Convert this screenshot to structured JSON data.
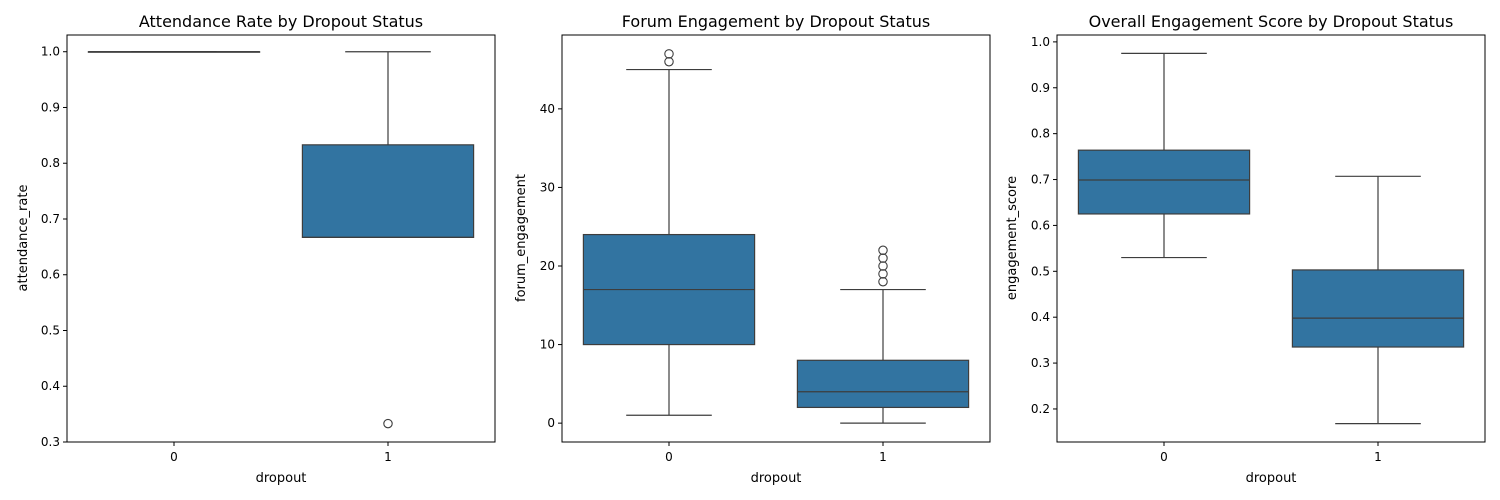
{
  "figure": {
    "background": "#ffffff"
  },
  "style": {
    "box_fill": "#3274a1",
    "line_color": "#3d3d3d",
    "axis_color": "#000000"
  },
  "chart_data": [
    {
      "type": "box",
      "title": "Attendance Rate by Dropout Status",
      "xlabel": "dropout",
      "ylabel": "attendance_rate",
      "categories": [
        "0",
        "1"
      ],
      "ylim": [
        0.3,
        1.03
      ],
      "yticks": [
        0.3,
        0.4,
        0.5,
        0.6,
        0.7,
        0.8,
        0.9,
        1.0
      ],
      "ytick_labels": [
        "0.3",
        "0.4",
        "0.5",
        "0.6",
        "0.7",
        "0.8",
        "0.9",
        "1.0"
      ],
      "boxes": [
        {
          "category": "0",
          "whislo": 1.0,
          "q1": 1.0,
          "med": 1.0,
          "q3": 1.0,
          "whishi": 1.0,
          "fliers": []
        },
        {
          "category": "1",
          "whislo": 0.667,
          "q1": 0.667,
          "med": 0.667,
          "q3": 0.833,
          "whishi": 1.0,
          "fliers": [
            0.333
          ]
        }
      ],
      "grid": false
    },
    {
      "type": "box",
      "title": "Forum Engagement by Dropout Status",
      "xlabel": "dropout",
      "ylabel": "forum_engagement",
      "categories": [
        "0",
        "1"
      ],
      "ylim": [
        -2.4,
        49.4
      ],
      "yticks": [
        0,
        10,
        20,
        30,
        40
      ],
      "ytick_labels": [
        "0",
        "10",
        "20",
        "30",
        "40"
      ],
      "boxes": [
        {
          "category": "0",
          "whislo": 1,
          "q1": 10,
          "med": 17,
          "q3": 24,
          "whishi": 45,
          "fliers": [
            46,
            47
          ]
        },
        {
          "category": "1",
          "whislo": 0,
          "q1": 2,
          "med": 4,
          "q3": 8,
          "whishi": 17,
          "fliers": [
            18,
            19,
            20,
            21,
            22
          ]
        }
      ],
      "grid": false
    },
    {
      "type": "box",
      "title": "Overall Engagement Score by Dropout Status",
      "xlabel": "dropout",
      "ylabel": "engagement_score",
      "categories": [
        "0",
        "1"
      ],
      "ylim": [
        0.128,
        1.015
      ],
      "yticks": [
        0.2,
        0.3,
        0.4,
        0.5,
        0.6,
        0.7,
        0.8,
        0.9,
        1.0
      ],
      "ytick_labels": [
        "0.2",
        "0.3",
        "0.4",
        "0.5",
        "0.6",
        "0.7",
        "0.8",
        "0.9",
        "1.0"
      ],
      "boxes": [
        {
          "category": "0",
          "whislo": 0.53,
          "q1": 0.625,
          "med": 0.699,
          "q3": 0.764,
          "whishi": 0.975,
          "fliers": []
        },
        {
          "category": "1",
          "whislo": 0.168,
          "q1": 0.335,
          "med": 0.398,
          "q3": 0.503,
          "whishi": 0.707,
          "fliers": []
        }
      ],
      "grid": false
    }
  ]
}
